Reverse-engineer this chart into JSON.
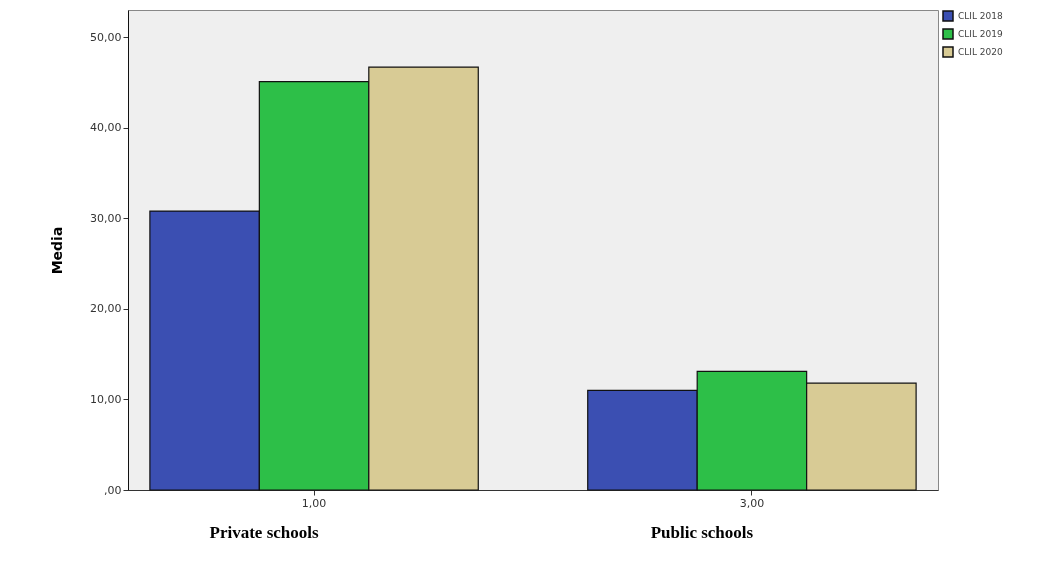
{
  "chart_data": {
    "type": "bar",
    "ylabel": "Media",
    "categories": [
      "1,00",
      "3,00"
    ],
    "series": [
      {
        "name": "CLIL 2018",
        "color": "#3b4fb2",
        "values": [
          30.8,
          11.0
        ]
      },
      {
        "name": "CLIL 2019",
        "color": "#2dbf48",
        "values": [
          45.1,
          13.1
        ]
      },
      {
        "name": "CLIL 2020",
        "color": "#d8cb95",
        "values": [
          46.7,
          11.8
        ]
      }
    ],
    "ylim": [
      0,
      53
    ],
    "yticks": [
      {
        "value": 0,
        "label": ",00"
      },
      {
        "value": 10,
        "label": "10,00"
      },
      {
        "value": 20,
        "label": "20,00"
      },
      {
        "value": 30,
        "label": "30,00"
      },
      {
        "value": 40,
        "label": "40,00"
      },
      {
        "value": 50,
        "label": "50,00"
      }
    ],
    "grid": false,
    "legend": "top right",
    "annotations": [
      "Private schools",
      "Public schools"
    ]
  }
}
